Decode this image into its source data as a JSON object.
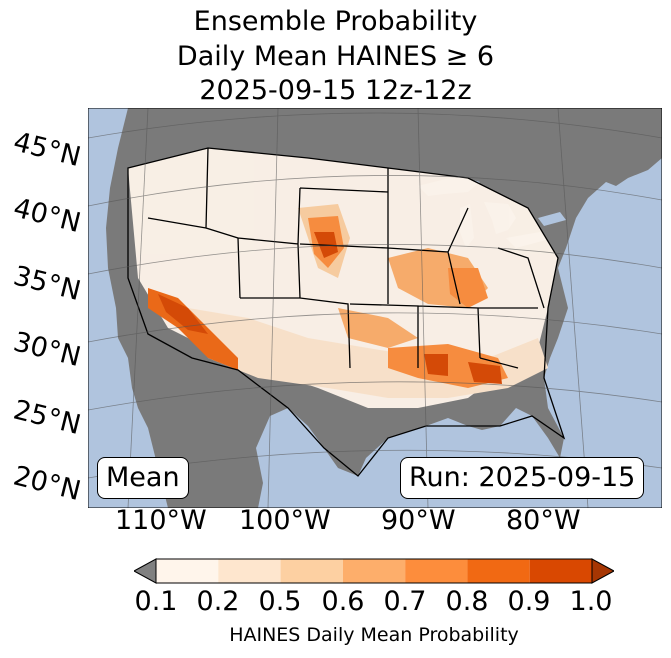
{
  "title": {
    "line1": "Ensemble Probability",
    "line2": "Daily Mean HAINES ≥ 6",
    "line3": "2025-09-15 12z-12z"
  },
  "map": {
    "region": "Continental United States",
    "projection": "Lambert conformal",
    "latitude_labels": [
      "45°N",
      "40°N",
      "35°N",
      "30°N",
      "25°N",
      "20°N"
    ],
    "longitude_labels": [
      "110°W",
      "100°W",
      "90°W",
      "80°W"
    ],
    "ocean_color": "#b0c4de",
    "no_data_color": "#7a7a7a"
  },
  "annotations": {
    "left_box": "Mean",
    "right_box": "Run: 2025-09-15"
  },
  "colorbar": {
    "label": "HAINES Daily Mean Probability",
    "ticks": [
      "0.1",
      "0.2",
      "0.5",
      "0.6",
      "0.7",
      "0.8",
      "0.9",
      "1.0"
    ],
    "under_color": "#808080",
    "colors": [
      "#fff5eb",
      "#fee6ce",
      "#fdd0a2",
      "#fdae6b",
      "#fd8d3c",
      "#f16913",
      "#d94801"
    ],
    "over_color": "#a63603"
  }
}
